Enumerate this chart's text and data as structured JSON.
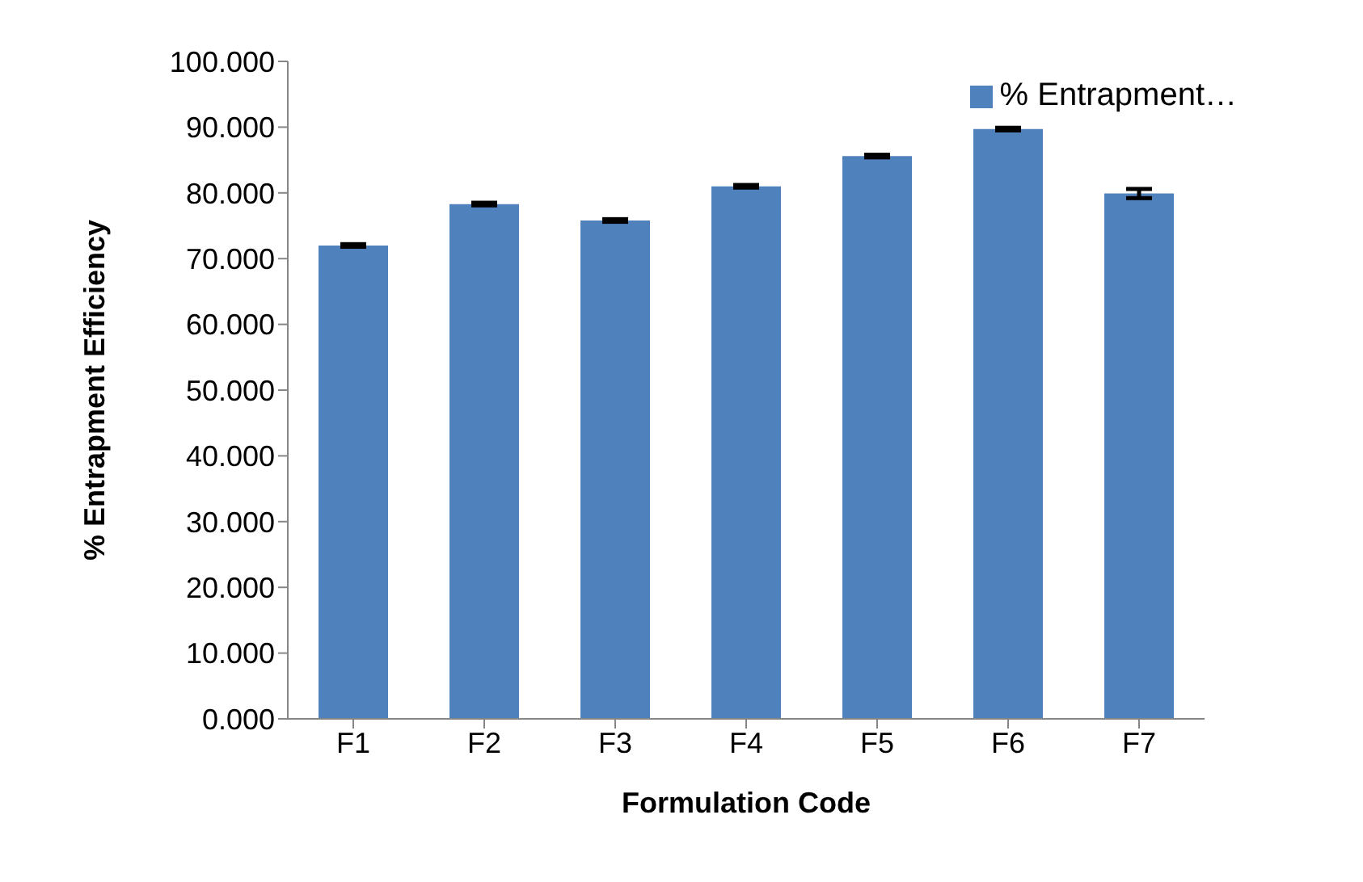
{
  "chart_data": {
    "type": "bar",
    "xlabel": "Formulation Code",
    "ylabel": "% Entrapment Efficiency",
    "categories": [
      "F1",
      "F2",
      "F3",
      "F4",
      "F5",
      "F6",
      "F7"
    ],
    "series": [
      {
        "name": "% Entrapment…",
        "color": "#4f81bd",
        "values": [
          72.0,
          78.3,
          75.8,
          81.0,
          85.6,
          89.7,
          79.9
        ],
        "errors": [
          0.2,
          0.2,
          0.2,
          0.2,
          0.2,
          0.2,
          0.7
        ]
      }
    ],
    "ylim": [
      0,
      100
    ],
    "yticks": [
      {
        "value": 0,
        "label": "0.000"
      },
      {
        "value": 10,
        "label": "10.000"
      },
      {
        "value": 20,
        "label": "20.000"
      },
      {
        "value": 30,
        "label": "30.000"
      },
      {
        "value": 40,
        "label": "40.000"
      },
      {
        "value": 50,
        "label": "50.000"
      },
      {
        "value": 60,
        "label": "60.000"
      },
      {
        "value": 70,
        "label": "70.000"
      },
      {
        "value": 80,
        "label": "80.000"
      },
      {
        "value": 90,
        "label": "90.000"
      },
      {
        "value": 100,
        "label": "100.000"
      }
    ],
    "grid": false,
    "legend": "top right"
  }
}
